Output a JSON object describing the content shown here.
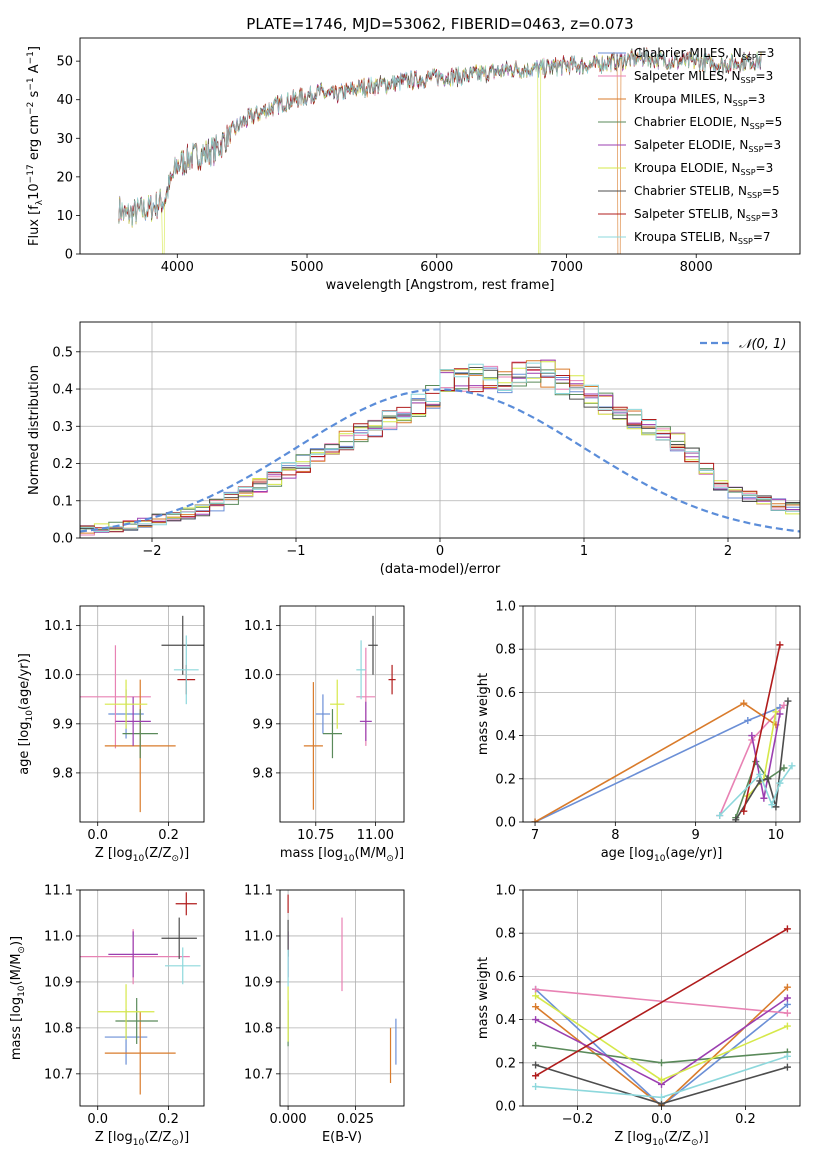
{
  "figure": {
    "title": "PLATE=1746, MJD=53062, FIBERID=0463, z=0.073"
  },
  "colors": [
    "#6b8fd6",
    "#e882b4",
    "#d97b2b",
    "#5a8a5a",
    "#9b3fb0",
    "#d6e84a",
    "#4d4d4d",
    "#b01c1c",
    "#8dd8dc"
  ],
  "chart_data": [
    {
      "id": "spectrum",
      "type": "line",
      "xlabel": "wavelength [Angstrom, rest frame]",
      "ylabel": "Flux [f",
      "ylabel_rich": {
        "base": "Flux [f",
        "sub": "λ",
        "mid": "10",
        "sup": "−17",
        "rest": " erg cm",
        "sup2": "−2",
        "rest2": " s",
        "sup3": "−1",
        "rest3": " A",
        "sup4": "−1",
        "end": "]"
      },
      "xlim": [
        3250,
        8800
      ],
      "ylim": [
        0,
        56
      ],
      "xticks": [
        4000,
        5000,
        6000,
        7000,
        8000
      ],
      "yticks": [
        0,
        10,
        20,
        30,
        40,
        50
      ],
      "legend": {
        "placement": "top-right"
      },
      "series": [
        {
          "name": "Chabrier MILES, N",
          "sub": "SSP",
          "suffix": "=3"
        },
        {
          "name": "Salpeter MILES, N",
          "sub": "SSP",
          "suffix": "=3"
        },
        {
          "name": "Kroupa MILES, N",
          "sub": "SSP",
          "suffix": "=3"
        },
        {
          "name": "Chabrier ELODIE, N",
          "sub": "SSP",
          "suffix": "=5"
        },
        {
          "name": "Salpeter ELODIE, N",
          "sub": "SSP",
          "suffix": "=3"
        },
        {
          "name": "Kroupa ELODIE, N",
          "sub": "SSP",
          "suffix": "=3"
        },
        {
          "name": "Chabrier STELIB, N",
          "sub": "SSP",
          "suffix": "=5"
        },
        {
          "name": "Salpeter STELIB, N",
          "sub": "SSP",
          "suffix": "=3"
        },
        {
          "name": "Kroupa STELIB, N",
          "sub": "SSP",
          "suffix": "=7"
        }
      ],
      "continuum": {
        "x": [
          3550,
          3600,
          3700,
          3800,
          3900,
          4000,
          4100,
          4200,
          4300,
          4400,
          4500,
          4600,
          4800,
          5000,
          5100,
          5200,
          5400,
          5600,
          5800,
          6000,
          6200,
          6400,
          6600,
          6800,
          7000,
          7200,
          7400,
          7600,
          7800,
          8000,
          8200,
          8400
        ],
        "y": [
          12,
          10,
          11,
          12,
          14,
          23,
          25,
          26,
          27,
          31,
          34,
          36,
          39,
          41,
          42,
          41,
          43,
          44,
          45,
          46,
          46,
          47,
          48,
          48,
          49,
          49,
          50,
          51,
          50,
          50,
          49,
          50
        ]
      }
    },
    {
      "id": "residuals",
      "type": "histogram",
      "xlabel": "(data-model)/error",
      "ylabel": "Normed distribution",
      "xlim": [
        -2.5,
        2.5
      ],
      "ylim": [
        0,
        0.58
      ],
      "xticks": [
        -2,
        -1,
        0,
        1,
        2
      ],
      "yticks": [
        0.0,
        0.1,
        0.2,
        0.3,
        0.4,
        0.5
      ],
      "legend": {
        "placement": "top-right",
        "label": "𝒩(0, 1)"
      },
      "bin_width": 0.1,
      "x_start": -2.5,
      "mean_profile": [
        0.02,
        0.025,
        0.03,
        0.035,
        0.04,
        0.05,
        0.055,
        0.065,
        0.075,
        0.09,
        0.105,
        0.12,
        0.14,
        0.16,
        0.18,
        0.2,
        0.22,
        0.24,
        0.26,
        0.28,
        0.3,
        0.32,
        0.34,
        0.36,
        0.38,
        0.42,
        0.42,
        0.43,
        0.43,
        0.42,
        0.44,
        0.45,
        0.44,
        0.42,
        0.4,
        0.38,
        0.36,
        0.34,
        0.32,
        0.3,
        0.28,
        0.26,
        0.22,
        0.18,
        0.14,
        0.12,
        0.11,
        0.1,
        0.09,
        0.08
      ]
    },
    {
      "id": "age-vs-Z",
      "type": "errorbar",
      "xlabel": "Z [log",
      "xlabel_rich": {
        "base": "Z [log",
        "sub": "10",
        "rest": "(Z/Z",
        "sub2": "⊙",
        "end": ")]"
      },
      "ylabel": "age  [log",
      "ylabel_rich": {
        "base": "age  [log",
        "sub": "10",
        "rest": "(age/yr)]"
      },
      "xlim": [
        -0.05,
        0.3
      ],
      "ylim": [
        9.7,
        10.14
      ],
      "xticks": [
        0.0,
        0.2
      ],
      "yticks": [
        9.8,
        9.9,
        10.0,
        10.1
      ],
      "points": [
        {
          "x": 0.08,
          "y": 9.92,
          "xerr": 0.05,
          "yerr": 0.05
        },
        {
          "x": 0.05,
          "y": 9.955,
          "xerr": 0.1,
          "yerr": 0.105
        },
        {
          "x": 0.12,
          "y": 9.855,
          "xerr": 0.1,
          "yerr": 0.135
        },
        {
          "x": 0.12,
          "y": 9.88,
          "xerr": 0.05,
          "yerr": 0.05
        },
        {
          "x": 0.1,
          "y": 9.905,
          "xerr": 0.05,
          "yerr": 0.05
        },
        {
          "x": 0.08,
          "y": 9.94,
          "xerr": 0.06,
          "yerr": 0.05
        },
        {
          "x": 0.24,
          "y": 10.06,
          "xerr": 0.06,
          "yerr": 0.06
        },
        {
          "x": 0.25,
          "y": 9.99,
          "xerr": 0.025,
          "yerr": 0.03
        },
        {
          "x": 0.25,
          "y": 10.01,
          "xerr": 0.035,
          "yerr": 0.07
        }
      ]
    },
    {
      "id": "age-vs-mass",
      "type": "errorbar",
      "xlabel": "mass [log",
      "xlabel_rich": {
        "base": "mass [log",
        "sub": "10",
        "rest": "(M/M",
        "sub2": "⊙",
        "end": ")]"
      },
      "ylabel": "",
      "xlim": [
        10.6,
        11.12
      ],
      "ylim": [
        9.7,
        10.14
      ],
      "xticks": [
        10.75,
        11.0
      ],
      "yticks": [
        9.8,
        9.9,
        10.0,
        10.1
      ],
      "points": [
        {
          "x": 10.78,
          "y": 9.92,
          "xerr": 0.03,
          "yerr": 0.04
        },
        {
          "x": 10.96,
          "y": 9.955,
          "xerr": 0.04,
          "yerr": 0.1
        },
        {
          "x": 10.74,
          "y": 9.855,
          "xerr": 0.04,
          "yerr": 0.13
        },
        {
          "x": 10.82,
          "y": 9.88,
          "xerr": 0.04,
          "yerr": 0.05
        },
        {
          "x": 10.96,
          "y": 9.905,
          "xerr": 0.025,
          "yerr": 0.04
        },
        {
          "x": 10.84,
          "y": 9.94,
          "xerr": 0.03,
          "yerr": 0.05
        },
        {
          "x": 10.99,
          "y": 10.06,
          "xerr": 0.02,
          "yerr": 0.06
        },
        {
          "x": 11.07,
          "y": 9.99,
          "xerr": 0.015,
          "yerr": 0.03
        },
        {
          "x": 10.94,
          "y": 10.01,
          "xerr": 0.02,
          "yerr": 0.06
        }
      ]
    },
    {
      "id": "weight-vs-age",
      "type": "line",
      "xlabel": "age  [log",
      "xlabel_rich": {
        "base": "age  [log",
        "sub": "10",
        "rest": "(age/yr)]"
      },
      "ylabel": "mass weight",
      "xlim": [
        6.85,
        10.3
      ],
      "ylim": [
        0,
        1.0
      ],
      "xticks": [
        7,
        8,
        9,
        10
      ],
      "yticks": [
        0.0,
        0.2,
        0.4,
        0.6,
        0.8,
        1.0
      ],
      "series": [
        {
          "x": [
            7.0,
            9.65,
            10.05
          ],
          "y": [
            0.0,
            0.47,
            0.53
          ]
        },
        {
          "x": [
            9.3,
            9.7,
            10.1
          ],
          "y": [
            0.03,
            0.38,
            0.54
          ]
        },
        {
          "x": [
            7.0,
            9.6,
            10.0
          ],
          "y": [
            0.0,
            0.55,
            0.45
          ]
        },
        {
          "x": [
            9.5,
            9.75,
            9.9,
            10.1
          ],
          "y": [
            0.02,
            0.28,
            0.2,
            0.25
          ]
        },
        {
          "x": [
            9.7,
            9.85,
            10.05
          ],
          "y": [
            0.4,
            0.11,
            0.5
          ]
        },
        {
          "x": [
            9.65,
            9.85,
            10.0
          ],
          "y": [
            0.12,
            0.2,
            0.51
          ]
        },
        {
          "x": [
            9.5,
            9.8,
            9.9,
            10.0,
            10.15
          ],
          "y": [
            0.01,
            0.19,
            0.2,
            0.07,
            0.56
          ]
        },
        {
          "x": [
            9.6,
            10.05
          ],
          "y": [
            0.05,
            0.82
          ]
        },
        {
          "x": [
            9.3,
            9.8,
            9.95,
            10.05,
            10.2
          ],
          "y": [
            0.03,
            0.22,
            0.08,
            0.18,
            0.26
          ]
        }
      ]
    },
    {
      "id": "mass-vs-Z",
      "type": "errorbar",
      "xlabel": "Z [log",
      "xlabel_rich": {
        "base": "Z [log",
        "sub": "10",
        "rest": "(Z/Z",
        "sub2": "⊙",
        "end": ")]"
      },
      "ylabel": "mass [log",
      "ylabel_rich": {
        "base": "mass [log",
        "sub": "10",
        "rest": "(M/M",
        "sub2": "⊙",
        "end": ")]"
      },
      "xlim": [
        -0.05,
        0.3
      ],
      "ylim": [
        10.63,
        11.1
      ],
      "xticks": [
        0.0,
        0.2
      ],
      "yticks": [
        10.7,
        10.8,
        10.9,
        11.0,
        11.1
      ],
      "points": [
        {
          "x": 0.08,
          "y": 10.78,
          "xerr": 0.06,
          "yerr": 0.06
        },
        {
          "x": 0.1,
          "y": 10.955,
          "xerr": 0.16,
          "yerr": 0.06
        },
        {
          "x": 0.12,
          "y": 10.745,
          "xerr": 0.1,
          "yerr": 0.09
        },
        {
          "x": 0.11,
          "y": 10.815,
          "xerr": 0.06,
          "yerr": 0.05
        },
        {
          "x": 0.1,
          "y": 10.96,
          "xerr": 0.07,
          "yerr": 0.05
        },
        {
          "x": 0.08,
          "y": 10.835,
          "xerr": 0.08,
          "yerr": 0.06
        },
        {
          "x": 0.23,
          "y": 10.995,
          "xerr": 0.05,
          "yerr": 0.045
        },
        {
          "x": 0.25,
          "y": 11.07,
          "xerr": 0.03,
          "yerr": 0.025
        },
        {
          "x": 0.24,
          "y": 10.935,
          "xerr": 0.05,
          "yerr": 0.04
        }
      ]
    },
    {
      "id": "mass-vs-EBV",
      "type": "errorbar",
      "xlabel": "E(B-V)",
      "ylabel": "",
      "xlim": [
        -0.003,
        0.043
      ],
      "ylim": [
        10.63,
        11.1
      ],
      "xticks": [
        0.0,
        0.025
      ],
      "xticklabels": [
        "0.000",
        "0.025"
      ],
      "yticks": [
        10.7,
        10.8,
        10.9,
        11.0,
        11.1
      ],
      "points": [
        {
          "x": 0.04,
          "y": 10.77,
          "xerr": 0,
          "yerr": 0.05
        },
        {
          "x": 0.02,
          "y": 10.96,
          "xerr": 0,
          "yerr": 0.08
        },
        {
          "x": 0.038,
          "y": 10.74,
          "xerr": 0,
          "yerr": 0.06
        },
        {
          "x": 0.0,
          "y": 10.81,
          "xerr": 0,
          "yerr": 0.05
        },
        {
          "x": 0.0,
          "y": 10.96,
          "xerr": 0,
          "yerr": 0.05
        },
        {
          "x": 0.0,
          "y": 10.83,
          "xerr": 0,
          "yerr": 0.06
        },
        {
          "x": 0.0,
          "y": 10.995,
          "xerr": 0,
          "yerr": 0.04
        },
        {
          "x": 0.0,
          "y": 11.07,
          "xerr": 0,
          "yerr": 0.02
        },
        {
          "x": 0.0,
          "y": 10.93,
          "xerr": 0,
          "yerr": 0.04
        }
      ]
    },
    {
      "id": "weight-vs-Z",
      "type": "line",
      "xlabel": "Z [log",
      "xlabel_rich": {
        "base": "Z [log",
        "sub": "10",
        "rest": "(Z/Z",
        "sub2": "⊙",
        "end": ")]"
      },
      "ylabel": "mass weight",
      "xlim": [
        -0.33,
        0.33
      ],
      "ylim": [
        0,
        1.0
      ],
      "xticks": [
        -0.2,
        0.0,
        0.2
      ],
      "xticklabels": [
        "−0.2",
        "0.0",
        "0.2"
      ],
      "yticks": [
        0.0,
        0.2,
        0.4,
        0.6,
        0.8,
        1.0
      ],
      "series": [
        {
          "x": [
            -0.3,
            0.0,
            0.3
          ],
          "y": [
            0.54,
            0.0,
            0.47
          ]
        },
        {
          "x": [
            -0.3,
            0.3
          ],
          "y": [
            0.54,
            0.43
          ]
        },
        {
          "x": [
            -0.3,
            0.0,
            0.3
          ],
          "y": [
            0.46,
            0.0,
            0.55
          ]
        },
        {
          "x": [
            -0.3,
            0.0,
            0.3
          ],
          "y": [
            0.28,
            0.2,
            0.25
          ]
        },
        {
          "x": [
            -0.3,
            0.0,
            0.3
          ],
          "y": [
            0.4,
            0.1,
            0.5
          ]
        },
        {
          "x": [
            -0.3,
            0.0,
            0.3
          ],
          "y": [
            0.51,
            0.12,
            0.37
          ]
        },
        {
          "x": [
            -0.3,
            0.0,
            0.3
          ],
          "y": [
            0.19,
            0.01,
            0.18
          ]
        },
        {
          "x": [
            -0.3,
            0.3
          ],
          "y": [
            0.14,
            0.82
          ]
        },
        {
          "x": [
            -0.3,
            0.0,
            0.3
          ],
          "y": [
            0.09,
            0.04,
            0.23
          ]
        }
      ]
    }
  ]
}
